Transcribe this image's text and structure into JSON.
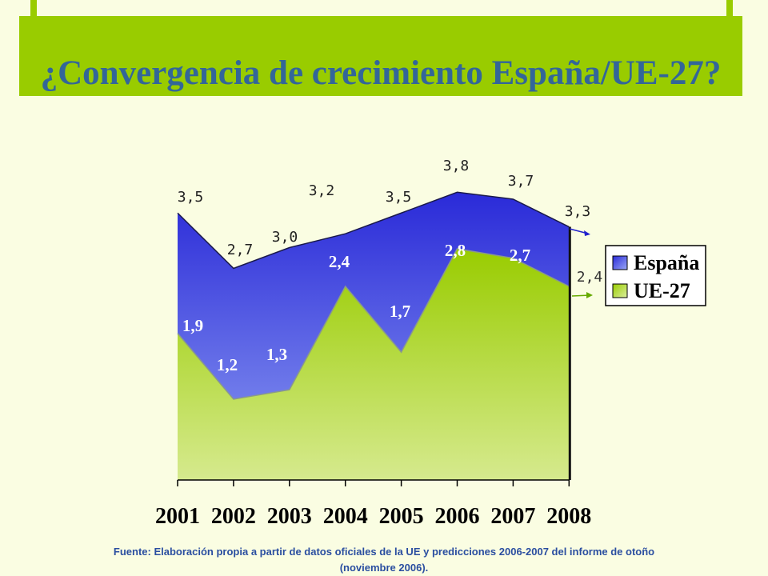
{
  "header": {
    "title": "¿Convergencia de crecimiento España/UE-27?"
  },
  "chart_data": {
    "type": "area",
    "title": "¿Convergencia de crecimiento España/UE-27?",
    "categories": [
      "2001",
      "2002",
      "2003",
      "2004",
      "2005",
      "2006",
      "2007",
      "2008"
    ],
    "series": [
      {
        "name": "España",
        "values": [
          3.5,
          2.7,
          3.0,
          3.2,
          3.5,
          3.8,
          3.7,
          3.3
        ],
        "labels": [
          "3,5",
          "2,7",
          "3,0",
          "3,2",
          "3,5",
          "3,8",
          "3,7",
          "3,3"
        ],
        "color": "#3333dd"
      },
      {
        "name": "UE-27",
        "values": [
          1.9,
          1.2,
          1.3,
          2.4,
          1.7,
          2.8,
          2.7,
          2.4
        ],
        "labels": [
          "1,9",
          "1,2",
          "1,3",
          "2,4",
          "1,7",
          "2,8",
          "2,7",
          "2,4"
        ],
        "color": "#99cc00"
      }
    ],
    "legend": "right",
    "grid": false
  },
  "footer": {
    "source_line1": "Fuente: Elaboración propia a partir de datos oficiales de la UE y predicciones 2006-2007 del informe de otoño",
    "source_line2": "(noviembre 2006)."
  },
  "colors": {
    "background": "#fafde2",
    "title_bar": "#99cc00",
    "title_text": "#336699"
  }
}
